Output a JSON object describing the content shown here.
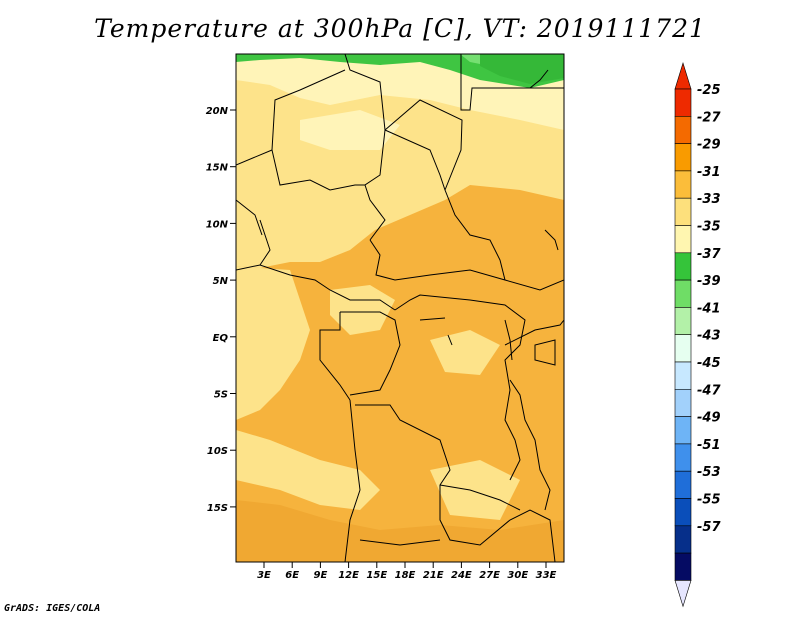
{
  "title": "Temperature at 300hPa [C], VT: 2019111721",
  "credit": "GrADS: IGES/COLA",
  "map": {
    "lat_labels": [
      "20N",
      "15N",
      "10N",
      "5N",
      "EQ",
      "5S",
      "10S",
      "15S"
    ],
    "lon_labels": [
      "3E",
      "6E",
      "9E",
      "12E",
      "15E",
      "18E",
      "21E",
      "24E",
      "27E",
      "30E",
      "33E"
    ],
    "field_colors": {
      "c_35": "#fff4b8",
      "c_33": "#fde38a",
      "c_31": "#fbc14d",
      "c_29": "#f6b33d",
      "c_37": "#3fc542",
      "c_39": "#76df72"
    }
  },
  "colorbar": {
    "labels": [
      "-25",
      "-27",
      "-29",
      "-31",
      "-33",
      "-35",
      "-37",
      "-39",
      "-41",
      "-43",
      "-45",
      "-47",
      "-49",
      "-51",
      "-53",
      "-55",
      "-57"
    ],
    "colors": [
      "#ee2a00",
      "#f46a00",
      "#f99b00",
      "#fbbd3a",
      "#fde07c",
      "#fff6b0",
      "#35c43a",
      "#6fdd66",
      "#b3f1a8",
      "#e6fff0",
      "#c7e8ff",
      "#a2d1fb",
      "#6eb4f6",
      "#3f90ec",
      "#1f6ed9",
      "#0a4eba",
      "#062f8a",
      "#050b63"
    ],
    "top_tip_color": "#ee2a00",
    "bottom_tip_color": "#e6e6ff"
  }
}
